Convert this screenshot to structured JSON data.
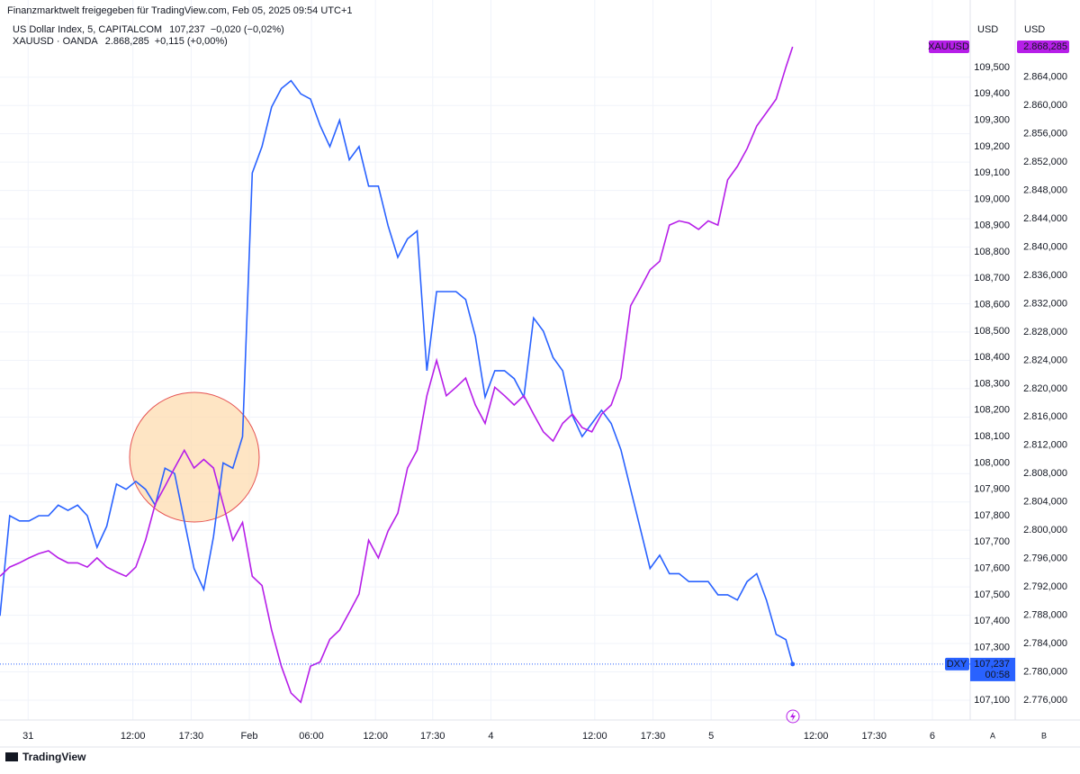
{
  "header": "Finanzmarktwelt freigegeben für TradingView.com, Feb 05, 2025 09:54 UTC+1",
  "brand": "TradingView",
  "scale_names": [
    "A",
    "B"
  ],
  "chart_data": {
    "type": "line",
    "x": [
      0,
      1,
      2,
      3,
      4,
      5,
      6,
      7,
      8,
      9,
      10,
      11,
      12,
      13,
      14,
      15,
      16,
      17,
      18,
      19,
      20,
      21,
      22,
      23,
      24,
      25,
      26,
      27,
      28,
      29,
      30,
      31,
      32,
      33,
      34,
      35,
      36,
      37,
      38,
      39,
      40,
      41,
      42,
      43,
      44,
      45,
      46,
      47,
      48,
      49,
      50,
      51,
      52,
      53,
      54,
      55,
      56,
      57,
      58,
      59,
      60,
      61,
      62,
      63,
      64,
      65,
      66,
      67,
      68,
      69,
      70,
      71,
      72,
      73,
      74,
      75,
      76,
      77,
      78,
      79,
      80,
      81,
      81.7
    ],
    "xlim": [
      0,
      100
    ],
    "xticks": [
      {
        "value": 2.9,
        "label": "31"
      },
      {
        "value": 13.7,
        "label": "12:00"
      },
      {
        "value": 19.7,
        "label": "17:30"
      },
      {
        "value": 25.7,
        "label": "Feb"
      },
      {
        "value": 32.1,
        "label": "06:00"
      },
      {
        "value": 38.7,
        "label": "12:00"
      },
      {
        "value": 44.6,
        "label": "17:30"
      },
      {
        "value": 50.6,
        "label": "4"
      },
      {
        "value": 61.3,
        "label": "12:00"
      },
      {
        "value": 67.3,
        "label": "17:30"
      },
      {
        "value": 73.3,
        "label": "5"
      },
      {
        "value": 84.1,
        "label": "12:00"
      },
      {
        "value": 90.1,
        "label": "17:30"
      },
      {
        "value": 96.1,
        "label": "6"
      }
    ],
    "ylabel": "USD",
    "y2label": "USD",
    "ylim": [
      107.025,
      109.756
    ],
    "yticks": [
      {
        "value": 107.1,
        "label": "107,100"
      },
      {
        "value": 107.2,
        "label": "107,200"
      },
      {
        "value": 107.3,
        "label": "107,300"
      },
      {
        "value": 107.4,
        "label": "107,400"
      },
      {
        "value": 107.5,
        "label": "107,500"
      },
      {
        "value": 107.6,
        "label": "107,600"
      },
      {
        "value": 107.7,
        "label": "107,700"
      },
      {
        "value": 107.8,
        "label": "107,800"
      },
      {
        "value": 107.9,
        "label": "107,900"
      },
      {
        "value": 108.0,
        "label": "108,000"
      },
      {
        "value": 108.1,
        "label": "108,100"
      },
      {
        "value": 108.2,
        "label": "108,200"
      },
      {
        "value": 108.3,
        "label": "108,300"
      },
      {
        "value": 108.4,
        "label": "108,400"
      },
      {
        "value": 108.5,
        "label": "108,500"
      },
      {
        "value": 108.6,
        "label": "108,600"
      },
      {
        "value": 108.7,
        "label": "108,700"
      },
      {
        "value": 108.8,
        "label": "108,800"
      },
      {
        "value": 108.9,
        "label": "108,900"
      },
      {
        "value": 109.0,
        "label": "109,000"
      },
      {
        "value": 109.1,
        "label": "109,100"
      },
      {
        "value": 109.2,
        "label": "109,200"
      },
      {
        "value": 109.3,
        "label": "109,300"
      },
      {
        "value": 109.4,
        "label": "109,400"
      },
      {
        "value": 109.5,
        "label": "109,500"
      }
    ],
    "y2lim": [
      2773.2,
      2874.9
    ],
    "y2ticks": [
      {
        "value": 2776,
        "label": "2.776,000"
      },
      {
        "value": 2780,
        "label": "2.780,000"
      },
      {
        "value": 2784,
        "label": "2.784,000"
      },
      {
        "value": 2788,
        "label": "2.788,000"
      },
      {
        "value": 2792,
        "label": "2.792,000"
      },
      {
        "value": 2796,
        "label": "2.796,000"
      },
      {
        "value": 2800,
        "label": "2.800,000"
      },
      {
        "value": 2804,
        "label": "2.804,000"
      },
      {
        "value": 2808,
        "label": "2.808,000"
      },
      {
        "value": 2812,
        "label": "2.812,000"
      },
      {
        "value": 2816,
        "label": "2.816,000"
      },
      {
        "value": 2820,
        "label": "2.820,000"
      },
      {
        "value": 2824,
        "label": "2.824,000"
      },
      {
        "value": 2828,
        "label": "2.828,000"
      },
      {
        "value": 2832,
        "label": "2.832,000"
      },
      {
        "value": 2836,
        "label": "2.836,000"
      },
      {
        "value": 2840,
        "label": "2.840,000"
      },
      {
        "value": 2844,
        "label": "2.844,000"
      },
      {
        "value": 2848,
        "label": "2.848,000"
      },
      {
        "value": 2852,
        "label": "2.852,000"
      },
      {
        "value": 2856,
        "label": "2.856,000"
      },
      {
        "value": 2860,
        "label": "2.860,000"
      },
      {
        "value": 2864,
        "label": "2.864,000"
      }
    ],
    "grid": true,
    "series": [
      {
        "name": "US Dollar Index, 5, CAPITALCOM",
        "short": "DXY",
        "color": "#2962ff",
        "axis": "y",
        "last_label": "107,237",
        "change": "−0,020 (−0,02%)",
        "countdown": "00:58",
        "values": [
          107.42,
          107.8,
          107.78,
          107.78,
          107.8,
          107.8,
          107.84,
          107.82,
          107.84,
          107.8,
          107.68,
          107.76,
          107.92,
          107.9,
          107.93,
          107.9,
          107.84,
          107.98,
          107.96,
          107.78,
          107.6,
          107.52,
          107.72,
          108.0,
          107.98,
          108.1,
          109.1,
          109.2,
          109.35,
          109.42,
          109.45,
          109.4,
          109.38,
          109.28,
          109.2,
          109.3,
          109.15,
          109.2,
          109.05,
          109.05,
          108.9,
          108.78,
          108.85,
          108.88,
          108.35,
          108.65,
          108.65,
          108.65,
          108.62,
          108.48,
          108.25,
          108.35,
          108.35,
          108.32,
          108.25,
          108.55,
          108.5,
          108.4,
          108.35,
          108.18,
          108.1,
          108.15,
          108.2,
          108.15,
          108.05,
          107.9,
          107.75,
          107.6,
          107.65,
          107.58,
          107.58,
          107.55,
          107.55,
          107.55,
          107.5,
          107.5,
          107.48,
          107.55,
          107.58,
          107.48,
          107.35,
          107.33,
          107.237
        ]
      },
      {
        "name": "XAUUSD · OANDA",
        "short": "XAUUSD",
        "color": "#b61ee8",
        "axis": "y2",
        "last_label": "2.868,285",
        "change": "+0,115 (+0,00%)",
        "values": [
          2793.5,
          2794.8,
          2795.4,
          2796.1,
          2796.7,
          2797.1,
          2796.1,
          2795.4,
          2795.4,
          2794.8,
          2796.1,
          2794.8,
          2794.1,
          2793.5,
          2794.8,
          2798.6,
          2803.7,
          2806.2,
          2808.8,
          2811.3,
          2808.8,
          2810.0,
          2808.8,
          2803.7,
          2798.6,
          2801.1,
          2793.5,
          2792.2,
          2785.9,
          2780.8,
          2777.0,
          2775.7,
          2780.8,
          2781.4,
          2784.6,
          2785.9,
          2788.4,
          2791.0,
          2798.6,
          2796.1,
          2799.9,
          2802.4,
          2808.8,
          2811.3,
          2819.0,
          2824.0,
          2819.0,
          2820.2,
          2821.5,
          2817.7,
          2815.1,
          2820.2,
          2819.0,
          2817.7,
          2819.0,
          2816.4,
          2813.9,
          2812.6,
          2815.1,
          2816.4,
          2814.5,
          2813.9,
          2816.4,
          2817.7,
          2821.5,
          2831.7,
          2834.2,
          2836.8,
          2838.0,
          2843.1,
          2843.7,
          2843.4,
          2842.5,
          2843.7,
          2843.1,
          2849.5,
          2851.4,
          2853.9,
          2857.1,
          2859.0,
          2860.9,
          2865.4,
          2868.285
        ]
      }
    ]
  }
}
